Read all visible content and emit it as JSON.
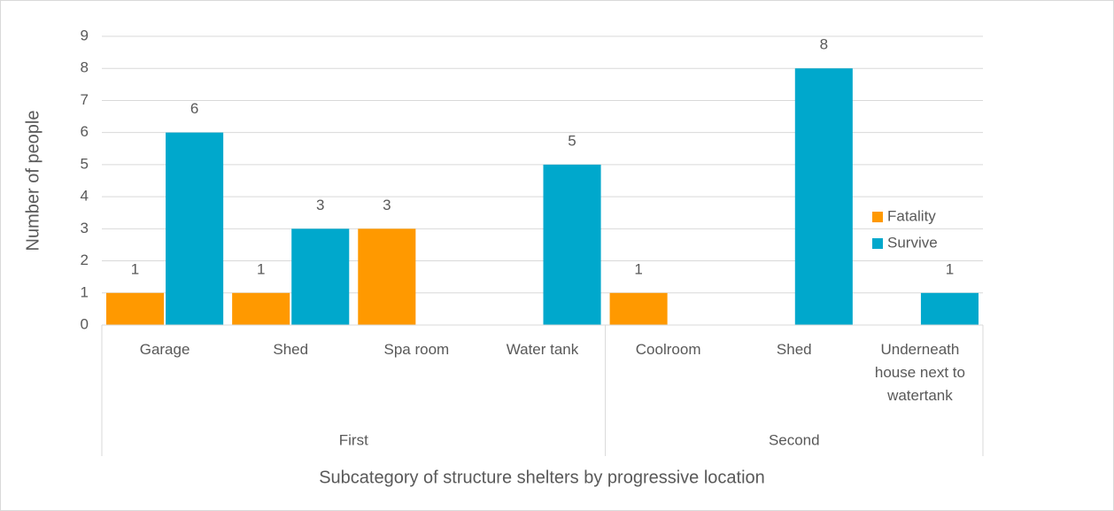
{
  "chart_data": {
    "type": "bar",
    "y_axis_label": "Number of people",
    "x_axis_label": "Subcategory of structure shelters by progressive location",
    "groups": [
      {
        "name": "First",
        "categories": [
          "Garage",
          "Shed",
          "Spa room",
          "Water tank"
        ]
      },
      {
        "name": "Second",
        "categories": [
          "Coolroom",
          "Shed",
          "Underneath house next to watertank"
        ]
      }
    ],
    "series": [
      {
        "name": "Fatality",
        "color": "#ff9900",
        "values": [
          1,
          1,
          3,
          null,
          1,
          null,
          null
        ]
      },
      {
        "name": "Survive",
        "color": "#00a8cc",
        "values": [
          6,
          3,
          null,
          5,
          null,
          8,
          1
        ]
      }
    ],
    "ylim": [
      0,
      9
    ],
    "yticks": [
      0,
      1,
      2,
      3,
      4,
      5,
      6,
      7,
      8,
      9
    ],
    "grid": true,
    "legend": "right"
  }
}
